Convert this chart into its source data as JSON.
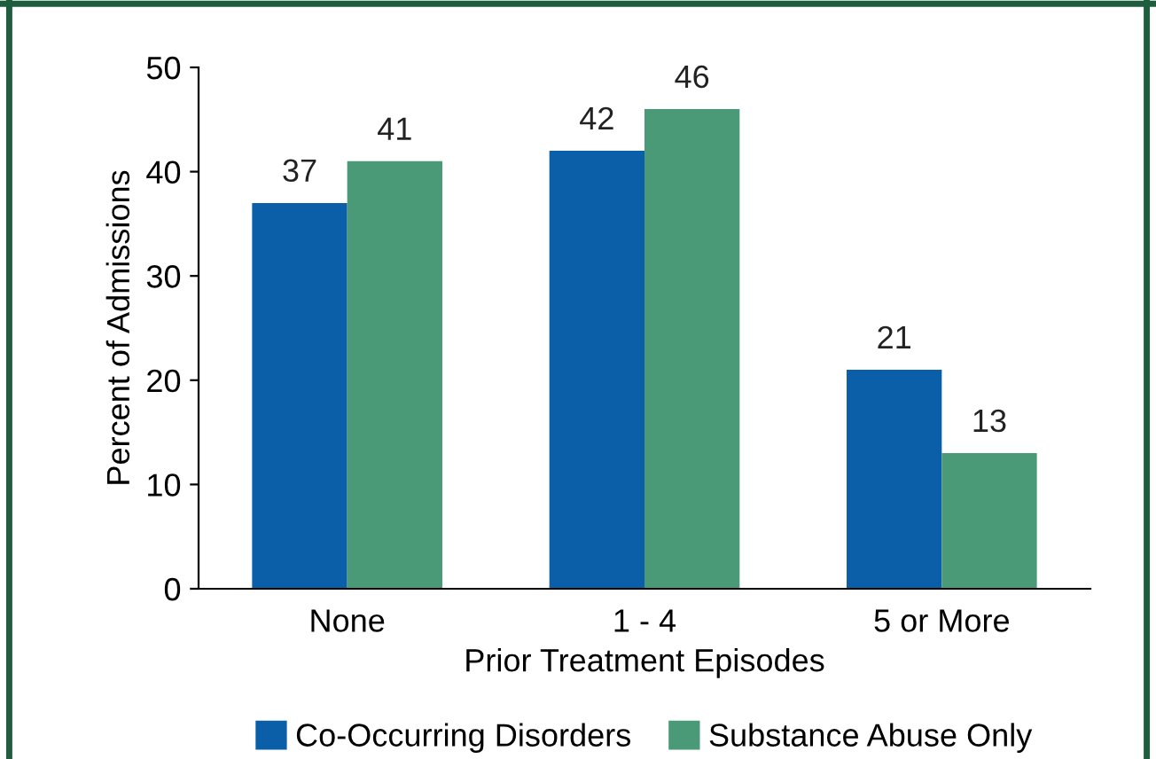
{
  "chart_data": {
    "type": "bar",
    "xlabel": "Prior Treatment Episodes",
    "ylabel": "Percent of Admissions",
    "categories": [
      "None",
      "1 - 4",
      "5 or More"
    ],
    "series": [
      {
        "name": "Co-Occurring Disorders",
        "color": "#0a5fa8",
        "values": [
          37,
          42,
          21
        ]
      },
      {
        "name": "Substance Abuse Only",
        "color": "#4a9a78",
        "values": [
          41,
          46,
          13
        ]
      }
    ],
    "ylim": [
      0,
      50
    ],
    "yticks": [
      0,
      10,
      20,
      30,
      40,
      50
    ],
    "grid": false,
    "legend": "bottom",
    "data_labels": true
  }
}
